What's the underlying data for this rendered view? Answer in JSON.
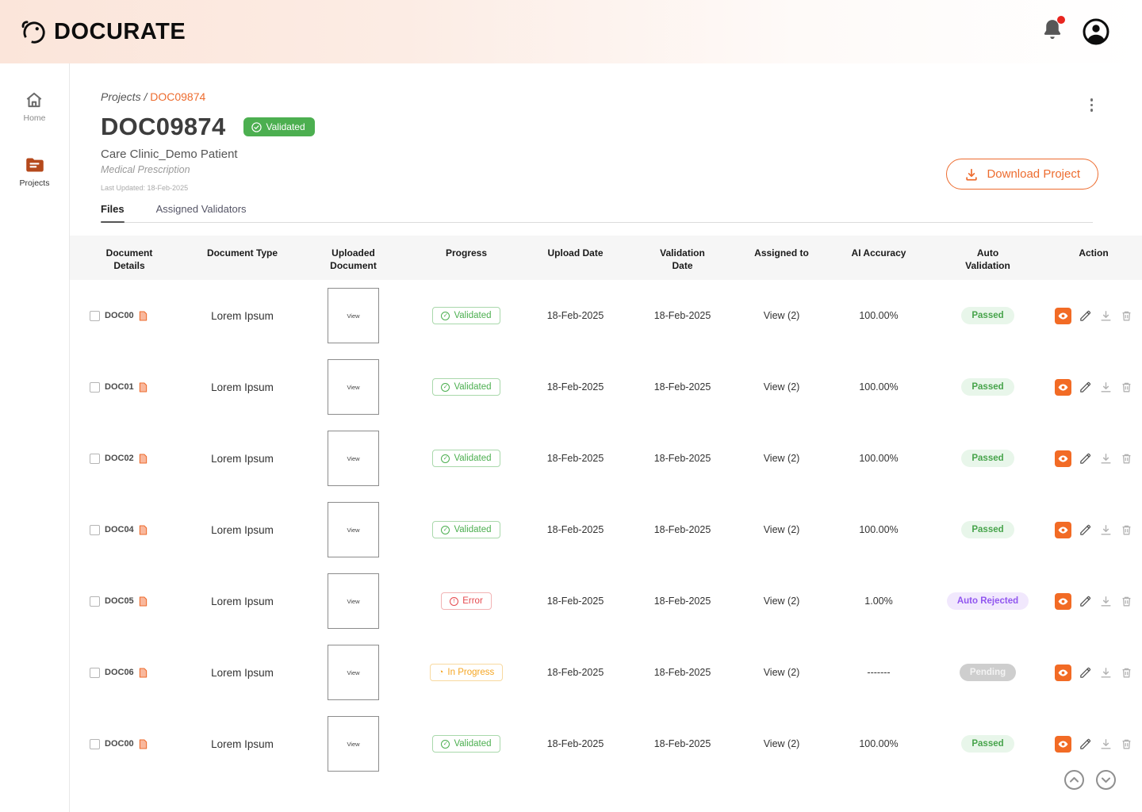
{
  "brand": {
    "name": "DOCURATE"
  },
  "header": {
    "notification": true
  },
  "sidebar": {
    "items": [
      {
        "label": "Home",
        "icon": "home-icon",
        "active": false
      },
      {
        "label": "Projects",
        "icon": "projects-folder-icon",
        "active": true
      }
    ]
  },
  "page": {
    "breadcrumb": {
      "root": "Projects /",
      "current": "DOC09874"
    },
    "title": "DOC09874",
    "status_badge": "Validated",
    "patient": "Care Clinic_Demo Patient",
    "document_type": "Medical Prescription",
    "last_updated": "Last Updated: 18-Feb-2025",
    "download_button": "Download Project",
    "tabs": [
      {
        "label": "Files",
        "active": true
      },
      {
        "label": "Assigned Validators",
        "active": false
      }
    ]
  },
  "table": {
    "columns": [
      {
        "lines": [
          "Document",
          "Details"
        ]
      },
      {
        "lines": [
          "Document Type"
        ]
      },
      {
        "lines": [
          "Uploaded",
          "Document"
        ]
      },
      {
        "lines": [
          "Progress"
        ]
      },
      {
        "lines": [
          "Upload Date"
        ]
      },
      {
        "lines": [
          "Validation",
          "Date"
        ]
      },
      {
        "lines": [
          "Assigned to"
        ]
      },
      {
        "lines": [
          "AI Accuracy"
        ]
      },
      {
        "lines": [
          "Auto",
          "Validation"
        ]
      },
      {
        "lines": [
          "Action"
        ]
      }
    ],
    "view_label": "View",
    "progress_icons": {
      "validated": "✓",
      "error": "!",
      "inprogress": "◔"
    },
    "rows": [
      {
        "id": "DOC00",
        "type": "Lorem Ipsum",
        "progress": "Validated",
        "progress_kind": "validated",
        "upload_date": "18-Feb-2025",
        "validation_date": "18-Feb-2025",
        "assigned": "View (2)",
        "accuracy": "100.00%",
        "auto_validation": "Passed",
        "auto_kind": "passed"
      },
      {
        "id": "DOC01",
        "type": "Lorem Ipsum",
        "progress": "Validated",
        "progress_kind": "validated",
        "upload_date": "18-Feb-2025",
        "validation_date": "18-Feb-2025",
        "assigned": "View (2)",
        "accuracy": "100.00%",
        "auto_validation": "Passed",
        "auto_kind": "passed"
      },
      {
        "id": "DOC02",
        "type": "Lorem Ipsum",
        "progress": "Validated",
        "progress_kind": "validated",
        "upload_date": "18-Feb-2025",
        "validation_date": "18-Feb-2025",
        "assigned": "View (2)",
        "accuracy": "100.00%",
        "auto_validation": "Passed",
        "auto_kind": "passed"
      },
      {
        "id": "DOC04",
        "type": "Lorem Ipsum",
        "progress": "Validated",
        "progress_kind": "validated",
        "upload_date": "18-Feb-2025",
        "validation_date": "18-Feb-2025",
        "assigned": "View (2)",
        "accuracy": "100.00%",
        "auto_validation": "Passed",
        "auto_kind": "passed"
      },
      {
        "id": "DOC05",
        "type": "Lorem Ipsum",
        "progress": "Error",
        "progress_kind": "error",
        "upload_date": "18-Feb-2025",
        "validation_date": "18-Feb-2025",
        "assigned": "View (2)",
        "accuracy": "1.00%",
        "auto_validation": "Auto Rejected",
        "auto_kind": "rejected"
      },
      {
        "id": "DOC06",
        "type": "Lorem Ipsum",
        "progress": "In Progress",
        "progress_kind": "inprogress",
        "upload_date": "18-Feb-2025",
        "validation_date": "18-Feb-2025",
        "assigned": "View (2)",
        "accuracy": "-------",
        "auto_validation": "Pending",
        "auto_kind": "pending"
      },
      {
        "id": "DOC00",
        "type": "Lorem Ipsum",
        "progress": "Validated",
        "progress_kind": "validated",
        "upload_date": "18-Feb-2025",
        "validation_date": "18-Feb-2025",
        "assigned": "View (2)",
        "accuracy": "100.00%",
        "auto_validation": "Passed",
        "auto_kind": "passed"
      }
    ]
  },
  "colors": {
    "accent": "#ED6C2F",
    "validated_green": "#4caf50",
    "error_red": "#e5484d",
    "inprogress_orange": "#f5a623",
    "rejected_purple": "#9156ef",
    "pending_gray": "#cecece",
    "folder_orange": "#b5491c"
  }
}
